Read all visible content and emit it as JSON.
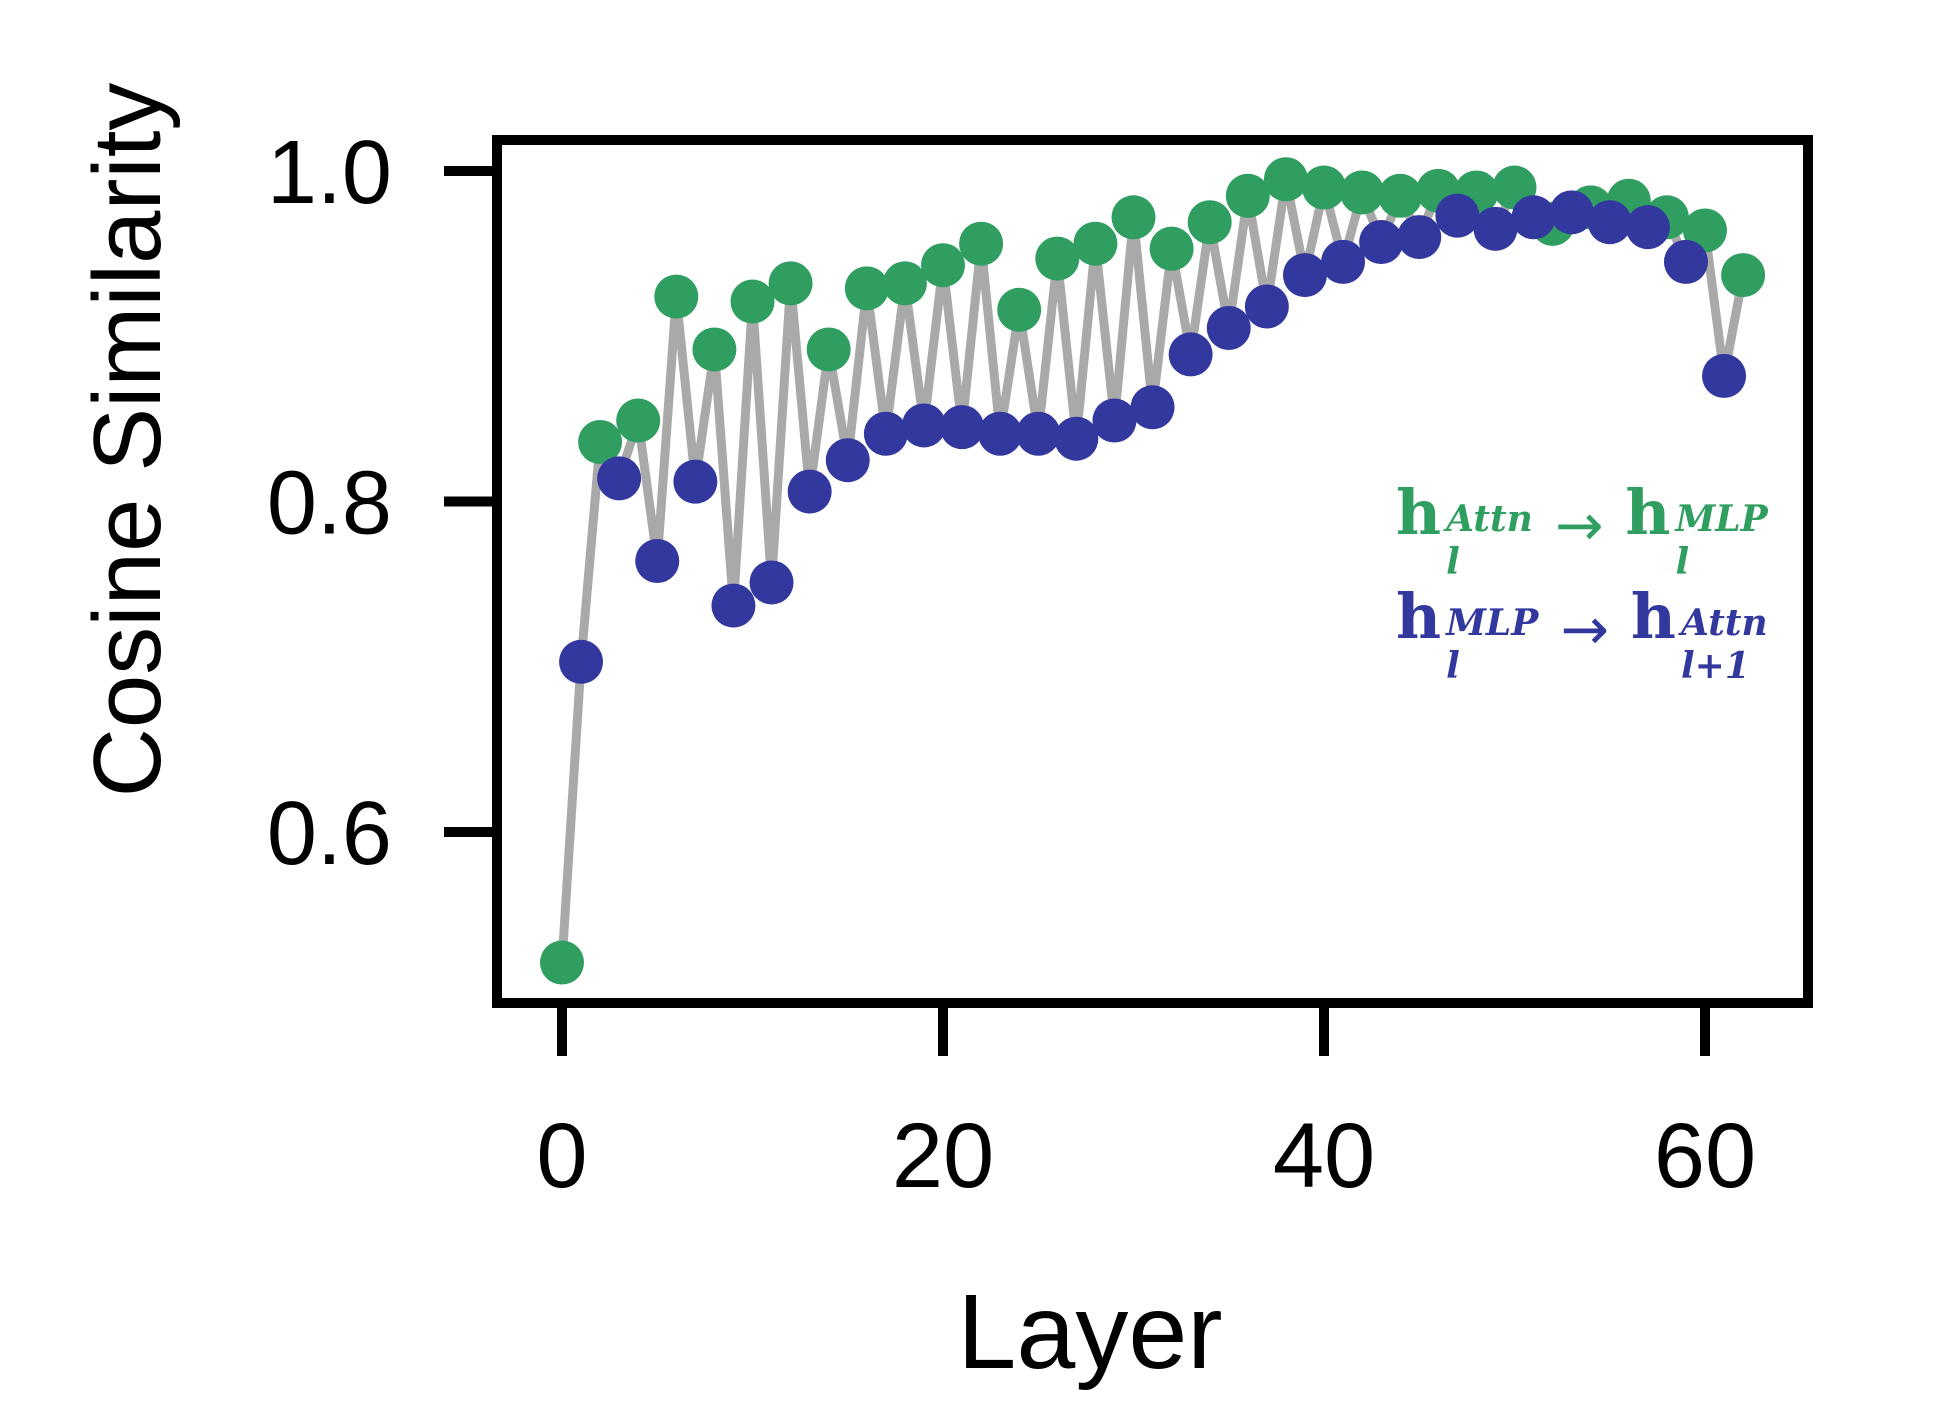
{
  "figure": {
    "background": "#ffffff"
  },
  "chart_data": {
    "type": "line-scatter",
    "title": "",
    "xlabel": "Layer",
    "ylabel": "Cosine Similarity",
    "grid": false,
    "legend_position": "center-right",
    "xlim": [
      -3.4,
      65.4
    ],
    "ylim": [
      0.497,
      1.019
    ],
    "x_ticks": {
      "values": [
        0,
        20,
        40,
        60
      ],
      "labels": [
        "0",
        "20",
        "40",
        "60"
      ]
    },
    "y_ticks": {
      "values": [
        1.0,
        0.8,
        0.6
      ],
      "labels": [
        "1.0",
        "0.8",
        "0.6"
      ]
    },
    "connector_line": {
      "color": "#A9A9A9",
      "width": 9
    },
    "marker_radius": 22,
    "series": [
      {
        "name": "attn-to-mlp",
        "label": "h_l^Attn -> h_l^MLP",
        "color": "#2F9E60",
        "points": [
          [
            0,
            0.521
          ],
          [
            2,
            0.836
          ],
          [
            4,
            0.849
          ],
          [
            6,
            0.924
          ],
          [
            8,
            0.892
          ],
          [
            10,
            0.921
          ],
          [
            12,
            0.932
          ],
          [
            14,
            0.892
          ],
          [
            16,
            0.929
          ],
          [
            18,
            0.932
          ],
          [
            20,
            0.943
          ],
          [
            22,
            0.956
          ],
          [
            24,
            0.916
          ],
          [
            26,
            0.947
          ],
          [
            28,
            0.956
          ],
          [
            30,
            0.972
          ],
          [
            32,
            0.953
          ],
          [
            34,
            0.969
          ],
          [
            36,
            0.985
          ],
          [
            38,
            0.995
          ],
          [
            40,
            0.99
          ],
          [
            42,
            0.987
          ],
          [
            44,
            0.985
          ],
          [
            46,
            0.988
          ],
          [
            48,
            0.987
          ],
          [
            50,
            0.99
          ],
          [
            52,
            0.968
          ],
          [
            54,
            0.978
          ],
          [
            56,
            0.982
          ],
          [
            58,
            0.972
          ],
          [
            60,
            0.964
          ],
          [
            62,
            0.937
          ]
        ]
      },
      {
        "name": "mlp-to-next-attn",
        "label": "h_l^MLP -> h_{l+1}^Attn",
        "color": "#33389E",
        "points": [
          [
            1,
            0.703
          ],
          [
            3,
            0.814
          ],
          [
            5,
            0.764
          ],
          [
            7,
            0.812
          ],
          [
            9,
            0.737
          ],
          [
            11,
            0.751
          ],
          [
            13,
            0.806
          ],
          [
            15,
            0.825
          ],
          [
            17,
            0.841
          ],
          [
            19,
            0.846
          ],
          [
            21,
            0.845
          ],
          [
            23,
            0.841
          ],
          [
            25,
            0.841
          ],
          [
            27,
            0.838
          ],
          [
            29,
            0.849
          ],
          [
            31,
            0.857
          ],
          [
            33,
            0.889
          ],
          [
            35,
            0.905
          ],
          [
            37,
            0.918
          ],
          [
            39,
            0.937
          ],
          [
            41,
            0.945
          ],
          [
            43,
            0.957
          ],
          [
            45,
            0.96
          ],
          [
            47,
            0.973
          ],
          [
            49,
            0.965
          ],
          [
            51,
            0.972
          ],
          [
            53,
            0.975
          ],
          [
            55,
            0.969
          ],
          [
            57,
            0.966
          ],
          [
            59,
            0.945
          ],
          [
            61,
            0.876
          ]
        ]
      }
    ]
  },
  "legend": {
    "row1": {
      "color": "#2F9E60",
      "h1": "h",
      "h1_sup": "Attn",
      "h1_sub": "l",
      "arrow": "→",
      "h2": "h",
      "h2_sup": "MLP",
      "h2_sub": "l"
    },
    "row2": {
      "color": "#33389E",
      "h1": "h",
      "h1_sup": "MLP",
      "h1_sub": "l",
      "arrow": "→",
      "h2": "h",
      "h2_sup": "Attn",
      "h2_sub": "l+1"
    }
  }
}
